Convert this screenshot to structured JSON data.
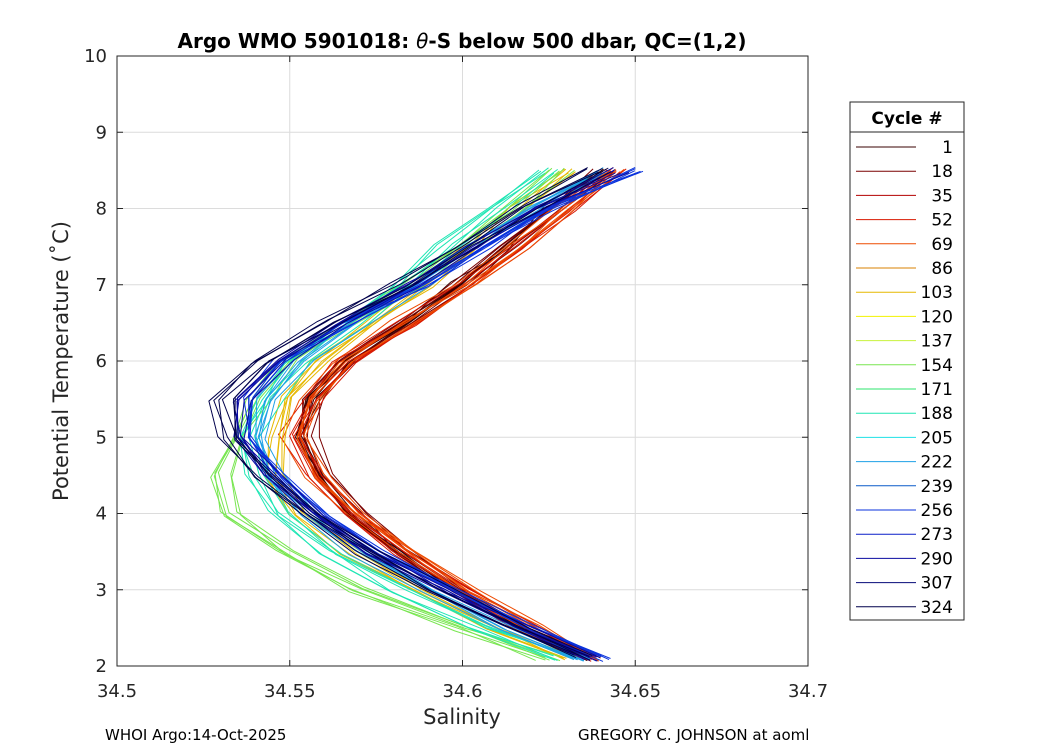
{
  "chart_data": {
    "type": "line",
    "title_pre": "Argo WMO 5901018: ",
    "title_theta": "θ",
    "title_post": "-S below 500 dbar,  QC=(1,2)",
    "xlabel": "Salinity",
    "ylabel": "Potential Temperature (˚C)",
    "xlim": [
      34.5,
      34.7
    ],
    "ylim": [
      2,
      10
    ],
    "xticks": [
      34.5,
      34.55,
      34.6,
      34.65,
      34.7
    ],
    "xtick_labels": [
      "34.5",
      "34.55",
      "34.6",
      "34.65",
      "34.7"
    ],
    "yticks": [
      2,
      3,
      4,
      5,
      6,
      7,
      8,
      9,
      10
    ],
    "ytick_labels": [
      "2",
      "3",
      "4",
      "5",
      "6",
      "7",
      "8",
      "9",
      "10"
    ],
    "grid": true,
    "legend": {
      "title": "Cycle #",
      "placement": "right",
      "entries": [
        {
          "label": "1",
          "color": "#3a0000"
        },
        {
          "label": "18",
          "color": "#7a0000"
        },
        {
          "label": "35",
          "color": "#b30000"
        },
        {
          "label": "52",
          "color": "#d81800"
        },
        {
          "label": "69",
          "color": "#ee4b00"
        },
        {
          "label": "86",
          "color": "#d98200"
        },
        {
          "label": "103",
          "color": "#e6b800"
        },
        {
          "label": "120",
          "color": "#f2f200"
        },
        {
          "label": "137",
          "color": "#c8f23c"
        },
        {
          "label": "154",
          "color": "#78e650"
        },
        {
          "label": "171",
          "color": "#2ee66e"
        },
        {
          "label": "188",
          "color": "#1ee6b4"
        },
        {
          "label": "205",
          "color": "#1ee1e6"
        },
        {
          "label": "222",
          "color": "#1ea0e6"
        },
        {
          "label": "239",
          "color": "#0a5ac8"
        },
        {
          "label": "256",
          "color": "#0a32dc"
        },
        {
          "label": "273",
          "color": "#0a1ec8"
        },
        {
          "label": "290",
          "color": "#0a0aa0"
        },
        {
          "label": "307",
          "color": "#050a78"
        },
        {
          "label": "324",
          "color": "#00004b"
        }
      ]
    },
    "series_template": {
      "theta": [
        2.1,
        2.5,
        3.0,
        3.5,
        4.0,
        4.5,
        5.0,
        5.5,
        6.0,
        6.5,
        7.0,
        7.5,
        8.0,
        8.5
      ],
      "salinity_groups": [
        {
          "color": "#3a0000",
          "salinity": [
            34.636,
            34.618,
            34.598,
            34.581,
            34.567,
            34.558,
            34.553,
            34.556,
            34.567,
            34.583,
            34.598,
            34.612,
            34.624,
            34.64
          ]
        },
        {
          "color": "#7a0000",
          "salinity": [
            34.637,
            34.619,
            34.6,
            34.583,
            34.57,
            34.561,
            34.556,
            34.557,
            34.566,
            34.584,
            34.6,
            34.614,
            34.628,
            34.642
          ]
        },
        {
          "color": "#d81800",
          "salinity": [
            34.637,
            34.619,
            34.6,
            34.583,
            34.568,
            34.557,
            34.551,
            34.557,
            34.566,
            34.585,
            34.602,
            34.617,
            34.63,
            34.644
          ]
        },
        {
          "color": "#ee4b00",
          "salinity": [
            34.638,
            34.62,
            34.601,
            34.584,
            34.569,
            34.558,
            34.552,
            34.556,
            34.565,
            34.583,
            34.601,
            34.616,
            34.629,
            34.643
          ]
        },
        {
          "color": "#e6b800",
          "salinity": [
            34.632,
            34.61,
            34.588,
            34.568,
            34.553,
            34.546,
            34.548,
            34.551,
            34.56,
            34.575,
            34.59,
            34.604,
            34.617,
            34.632
          ]
        },
        {
          "color": "#78e650",
          "salinity": [
            34.625,
            34.6,
            34.57,
            34.548,
            34.533,
            34.53,
            34.535,
            34.541,
            34.55,
            34.567,
            34.585,
            34.601,
            34.615,
            34.629
          ]
        },
        {
          "color": "#1ee6b4",
          "salinity": [
            34.63,
            34.606,
            34.582,
            34.562,
            34.547,
            34.54,
            34.539,
            34.544,
            34.552,
            34.568,
            34.583,
            34.596,
            34.61,
            34.625
          ]
        },
        {
          "color": "#1ea0e6",
          "salinity": [
            34.634,
            34.612,
            34.59,
            34.57,
            34.555,
            34.545,
            34.541,
            34.544,
            34.553,
            34.569,
            34.587,
            34.603,
            34.62,
            34.64
          ]
        },
        {
          "color": "#0a32dc",
          "salinity": [
            34.64,
            34.619,
            34.596,
            34.575,
            34.559,
            34.546,
            34.538,
            34.537,
            34.547,
            34.566,
            34.588,
            34.606,
            34.624,
            34.65
          ]
        },
        {
          "color": "#0a0aa0",
          "salinity": [
            34.638,
            34.617,
            34.595,
            34.574,
            34.558,
            34.545,
            34.536,
            34.536,
            34.548,
            34.566,
            34.586,
            34.604,
            34.622,
            34.645
          ]
        },
        {
          "color": "#00004b",
          "salinity": [
            34.636,
            34.615,
            34.593,
            34.572,
            34.556,
            34.543,
            34.533,
            34.531,
            34.542,
            34.562,
            34.583,
            34.601,
            34.619,
            34.64
          ]
        }
      ]
    }
  },
  "footer": {
    "left": "WHOI Argo:14-Oct-2025",
    "right": "GREGORY C. JOHNSON at aoml"
  }
}
